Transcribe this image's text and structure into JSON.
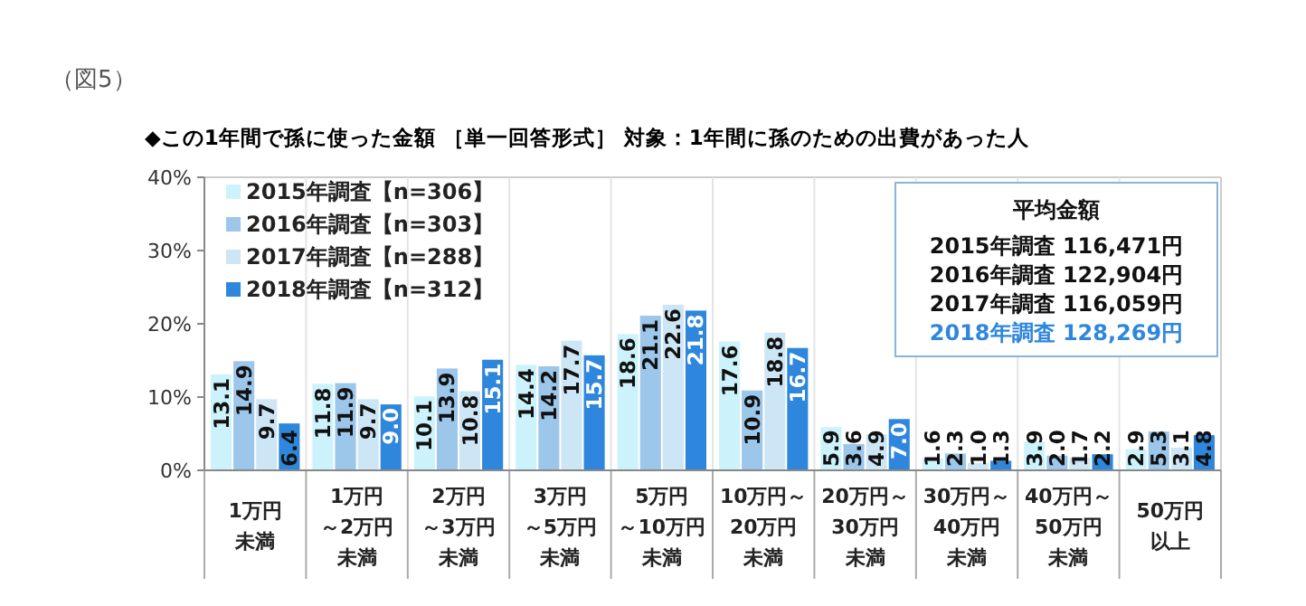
{
  "chart_data": {
    "type": "bar",
    "title": "◆この1年間で孫に使った金額 ［単一回答形式］ 対象：1年間に孫のための出費があった人",
    "categories": [
      "1万円未満",
      "1万円～2万円未満",
      "2万円～3万円未満",
      "3万円～5万円未満",
      "5万円～10万円未満",
      "10万円～20万円未満",
      "20万円～30万円未満",
      "30万円～40万円未満",
      "40万円～50万円未満",
      "50万円以上"
    ],
    "series": [
      {
        "name": "2015年調査【n=306】",
        "color": "#ccf3fb",
        "values": [
          13.1,
          11.8,
          10.1,
          14.4,
          18.6,
          17.6,
          5.9,
          1.6,
          3.9,
          2.9
        ],
        "value_labels": [
          "13.1",
          "11.8",
          "10.1",
          "14.4",
          "18.6",
          "17.6",
          "5.9",
          "1.6",
          "3.9",
          "2.9"
        ]
      },
      {
        "name": "2016年調査【n=303】",
        "color": "#9cc6ea",
        "values": [
          14.9,
          11.9,
          13.9,
          14.2,
          21.1,
          10.9,
          3.6,
          2.3,
          2.0,
          5.3
        ],
        "value_labels": [
          "14.9",
          "11.9",
          "13.9",
          "14.2",
          "21.1",
          "10.9",
          "3.6",
          "2.3",
          "2.0",
          "5.3"
        ]
      },
      {
        "name": "2017年調査【n=288】",
        "color": "#cde6f6",
        "values": [
          9.7,
          9.7,
          10.8,
          17.7,
          22.6,
          18.8,
          4.9,
          1.0,
          1.7,
          3.1
        ],
        "value_labels": [
          "9.7",
          "9.7",
          "10.8",
          "17.7",
          "22.6",
          "18.8",
          "4.9",
          "1.0",
          "1.7",
          "3.1"
        ]
      },
      {
        "name": "2018年調査【n=312】",
        "color": "#2e87dc",
        "values": [
          6.4,
          9.0,
          15.1,
          15.7,
          21.8,
          16.7,
          7.0,
          1.3,
          2.2,
          4.8
        ],
        "value_labels": [
          "6.4",
          "9.0",
          "15.1",
          "15.7",
          "21.8",
          "16.7",
          "7.0",
          "1.3",
          "2.2",
          "4.8"
        ]
      }
    ],
    "ylim": [
      0,
      40
    ],
    "yticks": [
      {
        "value": 0,
        "label": "0%"
      },
      {
        "value": 10,
        "label": "10%"
      },
      {
        "value": 20,
        "label": "20%"
      },
      {
        "value": 30,
        "label": "30%"
      },
      {
        "value": 40,
        "label": "40%"
      }
    ],
    "legend": "top left",
    "annotations": [
      "（図5）",
      "平均金額",
      "2015年調査  116,471円",
      "2016年調査  122,904円",
      "2017年調査  116,059円",
      "2018年調査  128,269円"
    ]
  }
}
